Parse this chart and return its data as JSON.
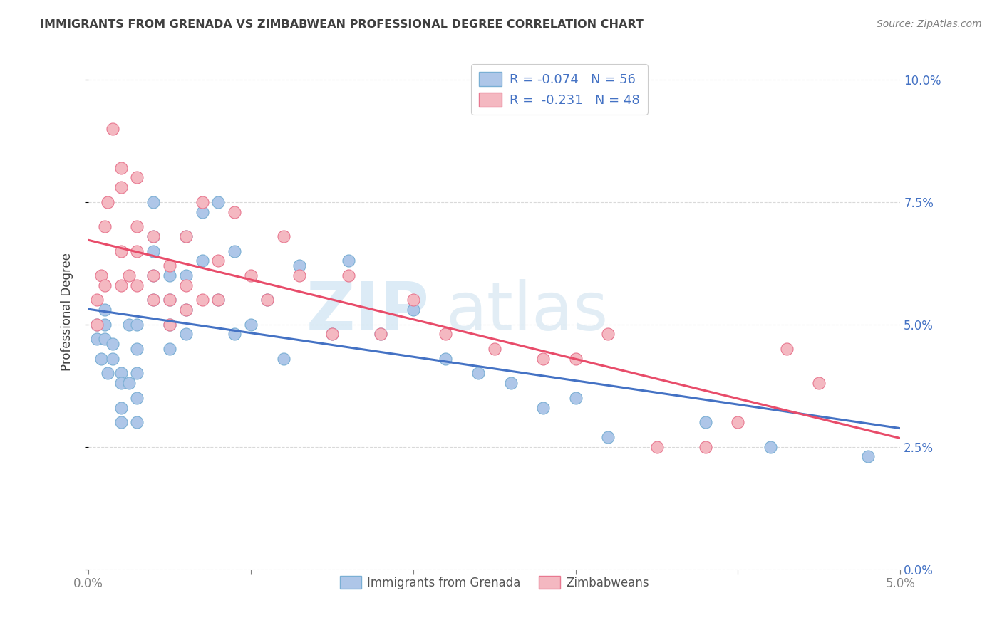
{
  "title": "IMMIGRANTS FROM GRENADA VS ZIMBABWEAN PROFESSIONAL DEGREE CORRELATION CHART",
  "source": "Source: ZipAtlas.com",
  "ylabel": "Professional Degree",
  "xmin": 0.0,
  "xmax": 0.05,
  "ymin": 0.0,
  "ymax": 0.105,
  "series_grenada": {
    "color": "#aec6e8",
    "edge_color": "#7aafd4",
    "line_color": "#4472c4",
    "R": -0.074,
    "N": 56,
    "x": [
      0.0005,
      0.0005,
      0.0008,
      0.001,
      0.001,
      0.001,
      0.0012,
      0.0015,
      0.0015,
      0.002,
      0.002,
      0.002,
      0.002,
      0.0025,
      0.0025,
      0.003,
      0.003,
      0.003,
      0.003,
      0.003,
      0.004,
      0.004,
      0.004,
      0.004,
      0.004,
      0.005,
      0.005,
      0.005,
      0.005,
      0.006,
      0.006,
      0.006,
      0.006,
      0.007,
      0.007,
      0.008,
      0.008,
      0.009,
      0.009,
      0.01,
      0.011,
      0.012,
      0.013,
      0.015,
      0.016,
      0.018,
      0.02,
      0.022,
      0.024,
      0.026,
      0.028,
      0.03,
      0.032,
      0.038,
      0.042,
      0.048
    ],
    "y": [
      0.047,
      0.05,
      0.043,
      0.047,
      0.05,
      0.053,
      0.04,
      0.043,
      0.046,
      0.04,
      0.038,
      0.033,
      0.03,
      0.05,
      0.038,
      0.045,
      0.04,
      0.035,
      0.03,
      0.05,
      0.055,
      0.06,
      0.065,
      0.068,
      0.075,
      0.045,
      0.05,
      0.055,
      0.06,
      0.048,
      0.053,
      0.06,
      0.068,
      0.063,
      0.073,
      0.055,
      0.075,
      0.048,
      0.065,
      0.05,
      0.055,
      0.043,
      0.062,
      0.048,
      0.063,
      0.048,
      0.053,
      0.043,
      0.04,
      0.038,
      0.033,
      0.035,
      0.027,
      0.03,
      0.025,
      0.023
    ]
  },
  "series_zimbabweans": {
    "color": "#f4b8c1",
    "edge_color": "#e87890",
    "line_color": "#e84c6a",
    "R": -0.231,
    "N": 48,
    "x": [
      0.0005,
      0.0005,
      0.0008,
      0.001,
      0.001,
      0.0012,
      0.0015,
      0.002,
      0.002,
      0.002,
      0.002,
      0.0025,
      0.003,
      0.003,
      0.003,
      0.003,
      0.004,
      0.004,
      0.004,
      0.005,
      0.005,
      0.005,
      0.006,
      0.006,
      0.006,
      0.007,
      0.007,
      0.008,
      0.008,
      0.009,
      0.01,
      0.011,
      0.012,
      0.013,
      0.015,
      0.016,
      0.018,
      0.02,
      0.022,
      0.025,
      0.028,
      0.03,
      0.032,
      0.035,
      0.038,
      0.04,
      0.043,
      0.045
    ],
    "y": [
      0.05,
      0.055,
      0.06,
      0.058,
      0.07,
      0.075,
      0.09,
      0.082,
      0.078,
      0.065,
      0.058,
      0.06,
      0.058,
      0.065,
      0.07,
      0.08,
      0.06,
      0.068,
      0.055,
      0.055,
      0.062,
      0.05,
      0.053,
      0.058,
      0.068,
      0.055,
      0.075,
      0.055,
      0.063,
      0.073,
      0.06,
      0.055,
      0.068,
      0.06,
      0.048,
      0.06,
      0.048,
      0.055,
      0.048,
      0.045,
      0.043,
      0.043,
      0.048,
      0.025,
      0.025,
      0.03,
      0.045,
      0.038
    ]
  },
  "watermark_zip": "ZIP",
  "watermark_atlas": "atlas",
  "background_color": "#ffffff",
  "grid_color": "#d9d9d9",
  "legend_r_n_color": "#4472c4",
  "title_color": "#404040",
  "source_color": "#808080",
  "ylabel_color": "#404040",
  "tick_color": "#808080"
}
